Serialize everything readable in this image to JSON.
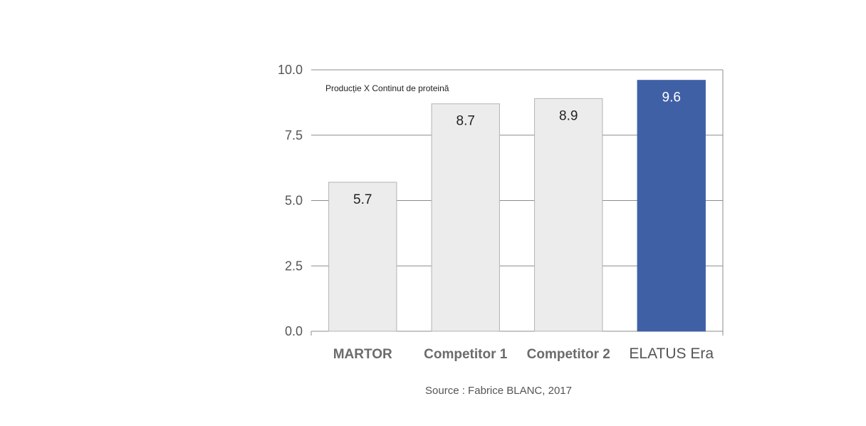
{
  "chart_data": {
    "type": "bar",
    "title": "Producție X Continut de proteină",
    "categories": [
      "MARTOR",
      "Competitor 1",
      "Competitor 2",
      "ELATUS Era"
    ],
    "values": [
      5.7,
      8.7,
      8.9,
      9.6
    ],
    "data_labels": [
      "5.7",
      "8.7",
      "8.9",
      "9.6"
    ],
    "y_ticks": [
      "0.0",
      "2.5",
      "5.0",
      "7.5",
      "10.0"
    ],
    "ylim": [
      0,
      10
    ],
    "xlabel": "",
    "ylabel": "",
    "grid": true,
    "highlight_index": 3,
    "colors": {
      "bar": "#ececec",
      "bar_border": "#b4b4b4",
      "highlight": "#4060a6",
      "grid": "#8c8c8c"
    }
  },
  "source": "Source : Fabrice BLANC, 2017"
}
